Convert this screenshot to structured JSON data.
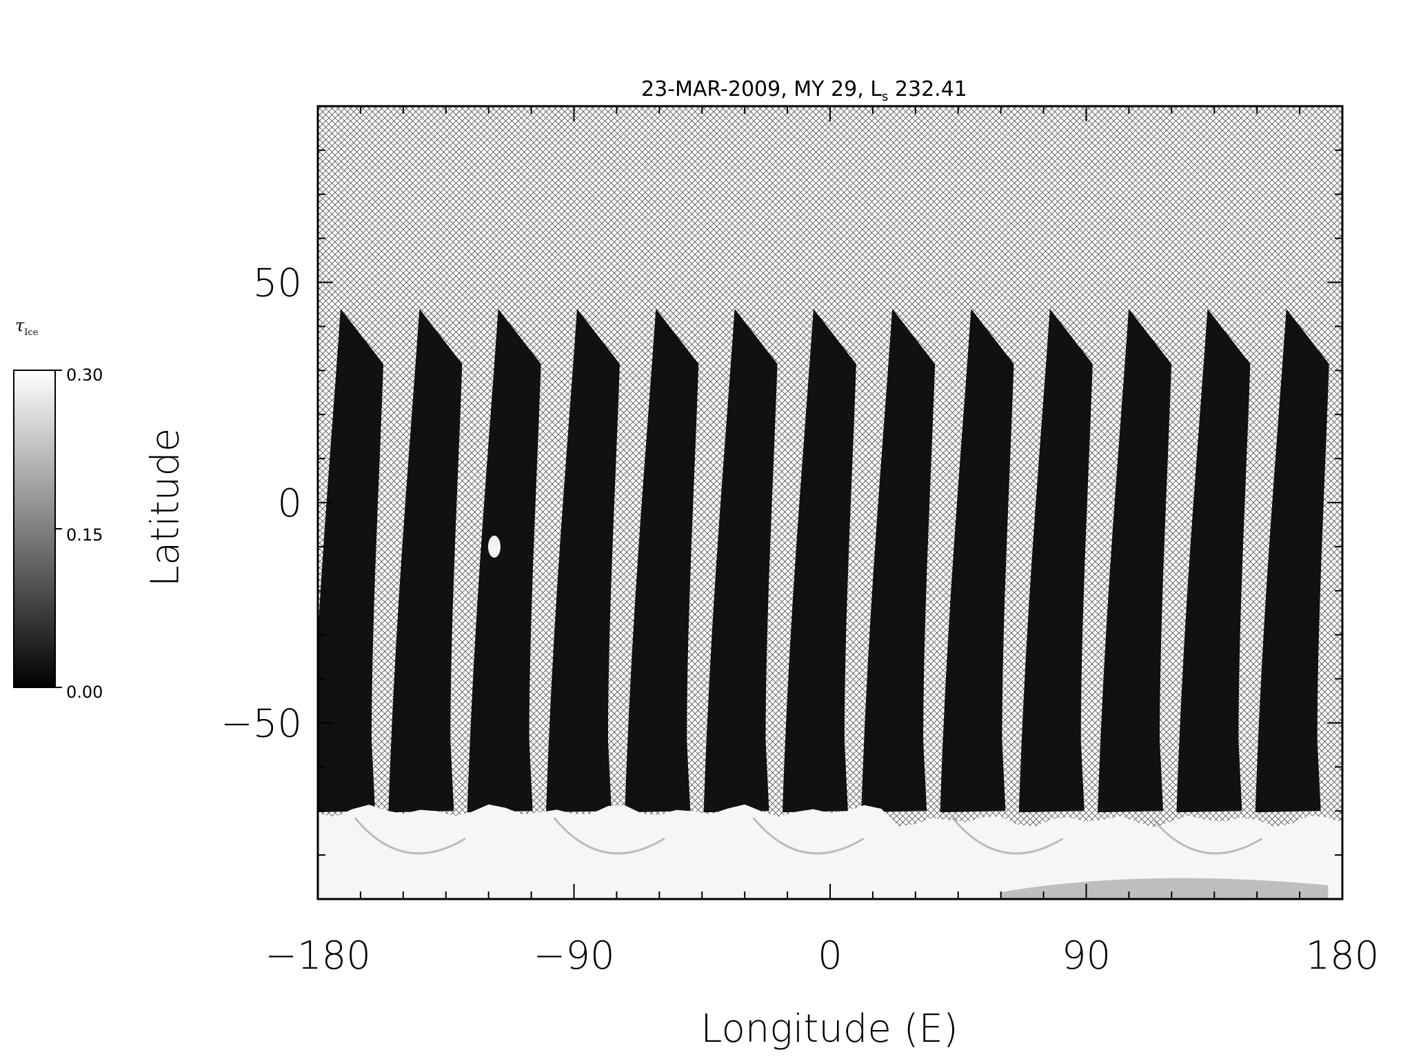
{
  "chart_data": {
    "type": "heatmap",
    "title": "23-MAR-2009, MY 29,  L",
    "title_subscript": "s",
    "title_value": "232.41",
    "xlabel": "Longitude (E)",
    "ylabel": "Latitude",
    "xlim": [
      -180,
      180
    ],
    "ylim": [
      -90,
      90
    ],
    "x_ticks": [
      "-180",
      "-90",
      "0",
      "90",
      "180"
    ],
    "y_ticks": [
      "-50",
      "0",
      "50"
    ],
    "colorbar": {
      "label_symbol": "τ",
      "label_subscript": "Ice",
      "min": 0.0,
      "max": 0.3,
      "ticks": [
        "0.30",
        "0.15",
        "0.00"
      ],
      "colormap": "grayscale"
    },
    "grid": false,
    "no_data_pattern": "crosshatch",
    "swath_count": 13,
    "swath_northern_edge_lat": 44,
    "south_cap_edge_lat": -70,
    "bright_spot": {
      "lon": -118,
      "lat": -10
    }
  }
}
